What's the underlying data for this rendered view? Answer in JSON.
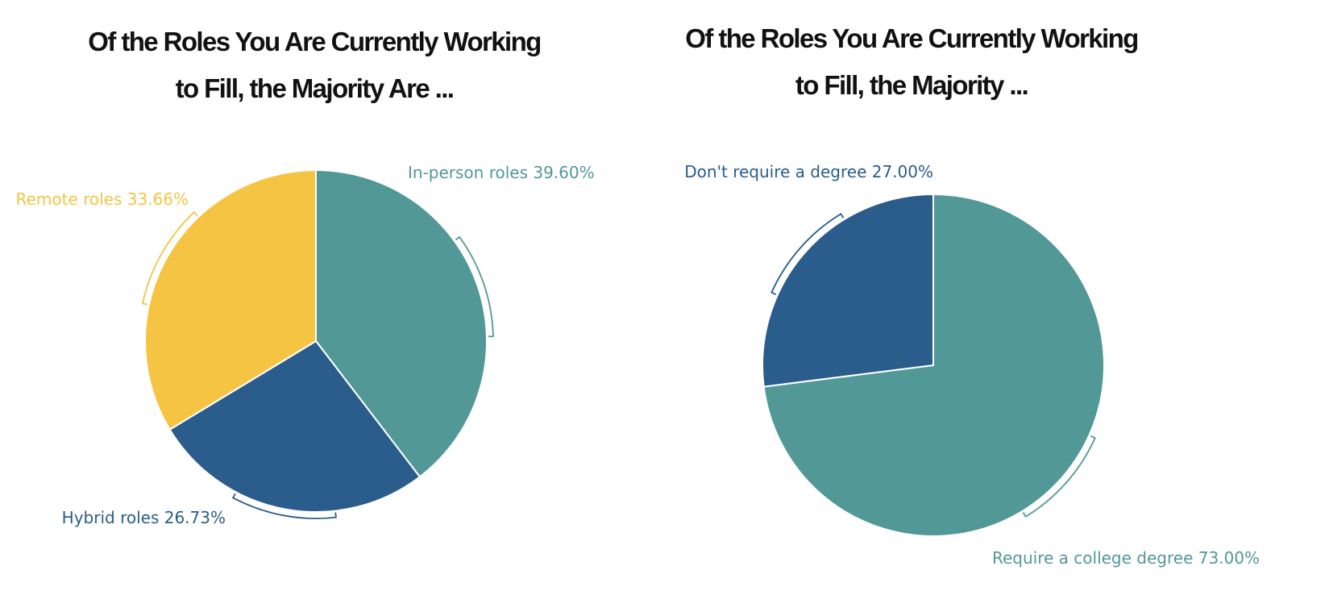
{
  "chart_data": [
    {
      "type": "pie",
      "title_lines": [
        "Of the Roles You Are Currently Working",
        "to Fill, the Majority Are ..."
      ],
      "slices": [
        {
          "label": "In-person roles",
          "value": 39.6,
          "display": "39.60%",
          "color": "#529897"
        },
        {
          "label": "Hybrid roles",
          "value": 26.73,
          "display": "26.73%",
          "color": "#2a5c8c"
        },
        {
          "label": "Remote roles",
          "value": 33.66,
          "display": "33.66%",
          "color": "#f5c443"
        }
      ],
      "legend": "none"
    },
    {
      "type": "pie",
      "title_lines": [
        "Of the Roles You Are Currently Working",
        "to Fill, the Majority ..."
      ],
      "slices": [
        {
          "label": "Require a college degree",
          "value": 73.0,
          "display": "73.00%",
          "color": "#529897"
        },
        {
          "label": "Don't require a degree",
          "value": 27.0,
          "display": "27.00%",
          "color": "#2a5c8c"
        }
      ],
      "legend": "none"
    }
  ]
}
